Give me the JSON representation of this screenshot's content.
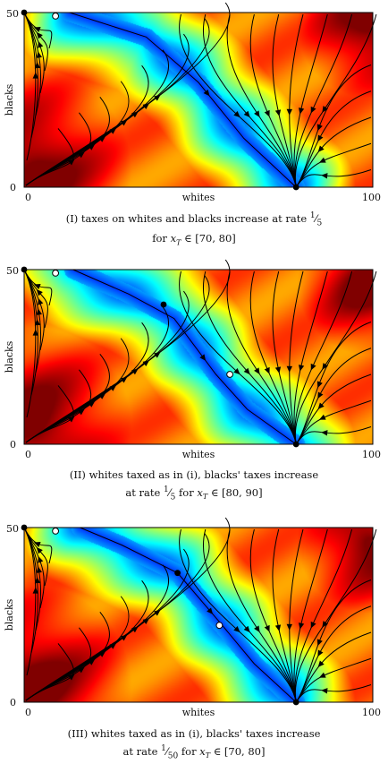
{
  "chart_data": [
    {
      "type": "phase_portrait",
      "panel": "I",
      "xlabel": "whites",
      "ylabel": "blacks",
      "xlim": [
        0,
        100
      ],
      "ylim": [
        0,
        50
      ],
      "x_ticks": [
        "0",
        "100"
      ],
      "y_ticks": [
        "0",
        "50"
      ],
      "colormap": "jet (blue = low, red = high)",
      "ridge": [
        [
          13,
          50
        ],
        [
          35,
          43
        ],
        [
          50,
          30
        ],
        [
          63,
          14
        ],
        [
          78,
          0
        ]
      ],
      "stable_equilibria": [
        [
          0,
          50
        ],
        [
          78,
          0
        ]
      ],
      "unstable_equilibria": [
        [
          9,
          49
        ]
      ],
      "caption_line1": "(I) taxes on whites and blacks increase at rate 1/5",
      "caption_line2": "for x_T ∈ [70, 80]"
    },
    {
      "type": "phase_portrait",
      "panel": "II",
      "xlabel": "whites",
      "ylabel": "blacks",
      "xlim": [
        0,
        100
      ],
      "ylim": [
        0,
        50
      ],
      "x_ticks": [
        "0",
        "100"
      ],
      "y_ticks": [
        "0",
        "50"
      ],
      "colormap": "jet (blue = low, red = high)",
      "ridge": [
        [
          14,
          50
        ],
        [
          30,
          43
        ],
        [
          43,
          36
        ],
        [
          55,
          20
        ],
        [
          64,
          10
        ],
        [
          78,
          0
        ]
      ],
      "stable_equilibria": [
        [
          0,
          50
        ],
        [
          40,
          40
        ],
        [
          78,
          0
        ]
      ],
      "unstable_equilibria": [
        [
          9,
          49
        ],
        [
          59,
          20
        ]
      ],
      "caption_line1": "(II) whites taxed as in (i), blacks' taxes increase",
      "caption_line2": "at rate 1/5 for x_T ∈ [80, 90]"
    },
    {
      "type": "phase_portrait",
      "panel": "III",
      "xlabel": "whites",
      "ylabel": "blacks",
      "xlim": [
        0,
        100
      ],
      "ylim": [
        0,
        50
      ],
      "x_ticks": [
        "0",
        "100"
      ],
      "y_ticks": [
        "0",
        "50"
      ],
      "colormap": "jet (blue = low, red = high)",
      "ridge": [
        [
          16,
          50
        ],
        [
          28,
          45
        ],
        [
          44,
          37
        ],
        [
          56,
          23
        ],
        [
          66,
          11
        ],
        [
          78,
          0
        ]
      ],
      "stable_equilibria": [
        [
          0,
          50
        ],
        [
          44,
          37
        ],
        [
          78,
          0
        ]
      ],
      "unstable_equilibria": [
        [
          9,
          49
        ],
        [
          56,
          22
        ]
      ],
      "caption_line1": "(III) whites taxed as in (i), blacks' taxes increase",
      "caption_line2": "at rate 1/50 for x_T ∈ [70, 80]"
    }
  ],
  "colors": {
    "axis": "#000000",
    "stream": "#000000",
    "jet_low": "#0000ff",
    "jet_mid": "#00ff7f",
    "jet_high": "#ff2000"
  },
  "captions": [
    {
      "pre": "(I) taxes on whites and blacks increase at rate ",
      "num": "1",
      "den": "5",
      "l2pre": "for ",
      "var": "x",
      "sub": "T",
      "l2post": " ∈ [70, 80]"
    },
    {
      "pre": "(II) whites taxed as in (i), blacks' taxes increase",
      "l2pre": "at rate ",
      "num": "1",
      "den": "5",
      "mid": " for ",
      "var": "x",
      "sub": "T",
      "l2post": " ∈ [80, 90]"
    },
    {
      "pre": "(III) whites taxed as in (i), blacks' taxes increase",
      "l2pre": "at rate ",
      "num": "1",
      "den": "50",
      "mid": " for ",
      "var": "x",
      "sub": "T",
      "l2post": " ∈ [70, 80]"
    }
  ]
}
